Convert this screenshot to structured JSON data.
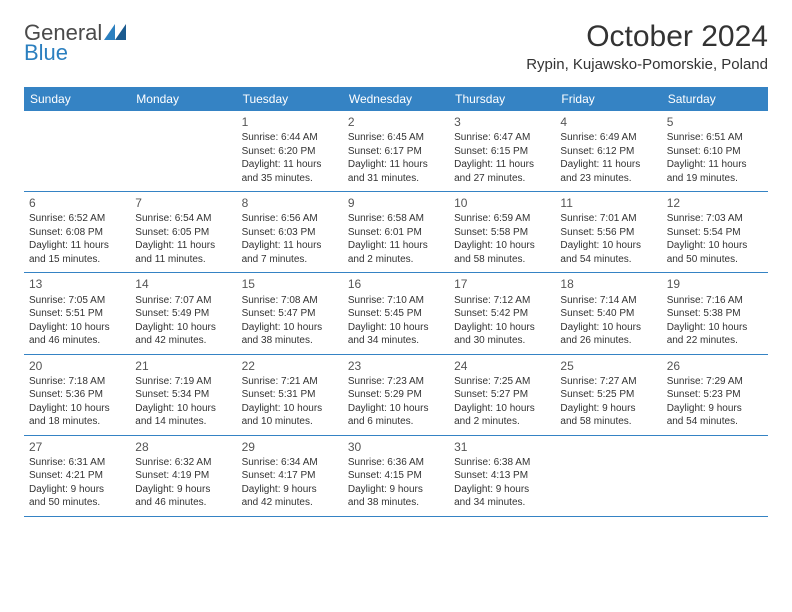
{
  "brand": {
    "gen": "General",
    "blue": "Blue"
  },
  "title": "October 2024",
  "location": "Rypin, Kujawsko-Pomorskie, Poland",
  "colors": {
    "headerBg": "#3583c4",
    "headerText": "#ffffff",
    "border": "#3583c4",
    "text": "#333333"
  },
  "dayNames": [
    "Sunday",
    "Monday",
    "Tuesday",
    "Wednesday",
    "Thursday",
    "Friday",
    "Saturday"
  ],
  "weeks": [
    [
      null,
      null,
      {
        "n": "1",
        "sr": "Sunrise: 6:44 AM",
        "ss": "Sunset: 6:20 PM",
        "dl1": "Daylight: 11 hours",
        "dl2": "and 35 minutes."
      },
      {
        "n": "2",
        "sr": "Sunrise: 6:45 AM",
        "ss": "Sunset: 6:17 PM",
        "dl1": "Daylight: 11 hours",
        "dl2": "and 31 minutes."
      },
      {
        "n": "3",
        "sr": "Sunrise: 6:47 AM",
        "ss": "Sunset: 6:15 PM",
        "dl1": "Daylight: 11 hours",
        "dl2": "and 27 minutes."
      },
      {
        "n": "4",
        "sr": "Sunrise: 6:49 AM",
        "ss": "Sunset: 6:12 PM",
        "dl1": "Daylight: 11 hours",
        "dl2": "and 23 minutes."
      },
      {
        "n": "5",
        "sr": "Sunrise: 6:51 AM",
        "ss": "Sunset: 6:10 PM",
        "dl1": "Daylight: 11 hours",
        "dl2": "and 19 minutes."
      }
    ],
    [
      {
        "n": "6",
        "sr": "Sunrise: 6:52 AM",
        "ss": "Sunset: 6:08 PM",
        "dl1": "Daylight: 11 hours",
        "dl2": "and 15 minutes."
      },
      {
        "n": "7",
        "sr": "Sunrise: 6:54 AM",
        "ss": "Sunset: 6:05 PM",
        "dl1": "Daylight: 11 hours",
        "dl2": "and 11 minutes."
      },
      {
        "n": "8",
        "sr": "Sunrise: 6:56 AM",
        "ss": "Sunset: 6:03 PM",
        "dl1": "Daylight: 11 hours",
        "dl2": "and 7 minutes."
      },
      {
        "n": "9",
        "sr": "Sunrise: 6:58 AM",
        "ss": "Sunset: 6:01 PM",
        "dl1": "Daylight: 11 hours",
        "dl2": "and 2 minutes."
      },
      {
        "n": "10",
        "sr": "Sunrise: 6:59 AM",
        "ss": "Sunset: 5:58 PM",
        "dl1": "Daylight: 10 hours",
        "dl2": "and 58 minutes."
      },
      {
        "n": "11",
        "sr": "Sunrise: 7:01 AM",
        "ss": "Sunset: 5:56 PM",
        "dl1": "Daylight: 10 hours",
        "dl2": "and 54 minutes."
      },
      {
        "n": "12",
        "sr": "Sunrise: 7:03 AM",
        "ss": "Sunset: 5:54 PM",
        "dl1": "Daylight: 10 hours",
        "dl2": "and 50 minutes."
      }
    ],
    [
      {
        "n": "13",
        "sr": "Sunrise: 7:05 AM",
        "ss": "Sunset: 5:51 PM",
        "dl1": "Daylight: 10 hours",
        "dl2": "and 46 minutes."
      },
      {
        "n": "14",
        "sr": "Sunrise: 7:07 AM",
        "ss": "Sunset: 5:49 PM",
        "dl1": "Daylight: 10 hours",
        "dl2": "and 42 minutes."
      },
      {
        "n": "15",
        "sr": "Sunrise: 7:08 AM",
        "ss": "Sunset: 5:47 PM",
        "dl1": "Daylight: 10 hours",
        "dl2": "and 38 minutes."
      },
      {
        "n": "16",
        "sr": "Sunrise: 7:10 AM",
        "ss": "Sunset: 5:45 PM",
        "dl1": "Daylight: 10 hours",
        "dl2": "and 34 minutes."
      },
      {
        "n": "17",
        "sr": "Sunrise: 7:12 AM",
        "ss": "Sunset: 5:42 PM",
        "dl1": "Daylight: 10 hours",
        "dl2": "and 30 minutes."
      },
      {
        "n": "18",
        "sr": "Sunrise: 7:14 AM",
        "ss": "Sunset: 5:40 PM",
        "dl1": "Daylight: 10 hours",
        "dl2": "and 26 minutes."
      },
      {
        "n": "19",
        "sr": "Sunrise: 7:16 AM",
        "ss": "Sunset: 5:38 PM",
        "dl1": "Daylight: 10 hours",
        "dl2": "and 22 minutes."
      }
    ],
    [
      {
        "n": "20",
        "sr": "Sunrise: 7:18 AM",
        "ss": "Sunset: 5:36 PM",
        "dl1": "Daylight: 10 hours",
        "dl2": "and 18 minutes."
      },
      {
        "n": "21",
        "sr": "Sunrise: 7:19 AM",
        "ss": "Sunset: 5:34 PM",
        "dl1": "Daylight: 10 hours",
        "dl2": "and 14 minutes."
      },
      {
        "n": "22",
        "sr": "Sunrise: 7:21 AM",
        "ss": "Sunset: 5:31 PM",
        "dl1": "Daylight: 10 hours",
        "dl2": "and 10 minutes."
      },
      {
        "n": "23",
        "sr": "Sunrise: 7:23 AM",
        "ss": "Sunset: 5:29 PM",
        "dl1": "Daylight: 10 hours",
        "dl2": "and 6 minutes."
      },
      {
        "n": "24",
        "sr": "Sunrise: 7:25 AM",
        "ss": "Sunset: 5:27 PM",
        "dl1": "Daylight: 10 hours",
        "dl2": "and 2 minutes."
      },
      {
        "n": "25",
        "sr": "Sunrise: 7:27 AM",
        "ss": "Sunset: 5:25 PM",
        "dl1": "Daylight: 9 hours",
        "dl2": "and 58 minutes."
      },
      {
        "n": "26",
        "sr": "Sunrise: 7:29 AM",
        "ss": "Sunset: 5:23 PM",
        "dl1": "Daylight: 9 hours",
        "dl2": "and 54 minutes."
      }
    ],
    [
      {
        "n": "27",
        "sr": "Sunrise: 6:31 AM",
        "ss": "Sunset: 4:21 PM",
        "dl1": "Daylight: 9 hours",
        "dl2": "and 50 minutes."
      },
      {
        "n": "28",
        "sr": "Sunrise: 6:32 AM",
        "ss": "Sunset: 4:19 PM",
        "dl1": "Daylight: 9 hours",
        "dl2": "and 46 minutes."
      },
      {
        "n": "29",
        "sr": "Sunrise: 6:34 AM",
        "ss": "Sunset: 4:17 PM",
        "dl1": "Daylight: 9 hours",
        "dl2": "and 42 minutes."
      },
      {
        "n": "30",
        "sr": "Sunrise: 6:36 AM",
        "ss": "Sunset: 4:15 PM",
        "dl1": "Daylight: 9 hours",
        "dl2": "and 38 minutes."
      },
      {
        "n": "31",
        "sr": "Sunrise: 6:38 AM",
        "ss": "Sunset: 4:13 PM",
        "dl1": "Daylight: 9 hours",
        "dl2": "and 34 minutes."
      },
      null,
      null
    ]
  ]
}
